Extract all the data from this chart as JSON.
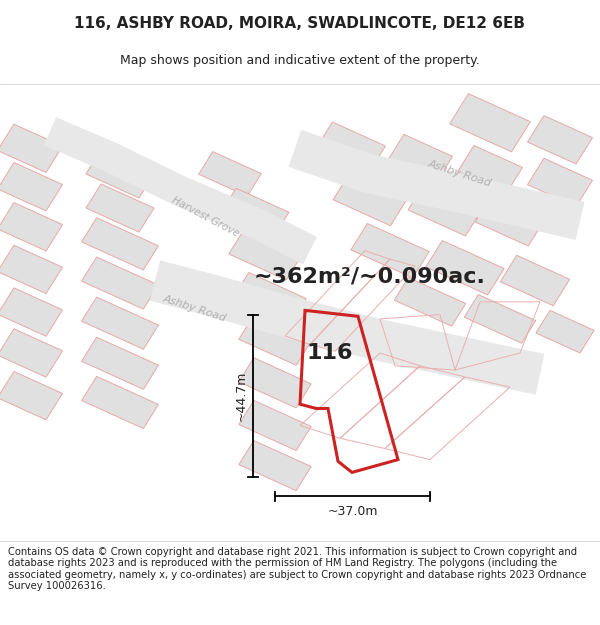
{
  "title_line1": "116, ASHBY ROAD, MOIRA, SWADLINCOTE, DE12 6EB",
  "title_line2": "Map shows position and indicative extent of the property.",
  "area_text": "~362m²/~0.090ac.",
  "label_116": "116",
  "dim_height": "~44.7m",
  "dim_width": "~37.0m",
  "footer_text": "Contains OS data © Crown copyright and database right 2021. This information is subject to Crown copyright and database rights 2023 and is reproduced with the permission of HM Land Registry. The polygons (including the associated geometry, namely x, y co-ordinates) are subject to Crown copyright and database rights 2023 Ordnance Survey 100026316.",
  "map_bg": "#ffffff",
  "road_fill": "#e8e8e8",
  "road_edge": "#cccccc",
  "block_fill": "#e0e0e0",
  "block_edge": "#e0a0a0",
  "prop_edge": "#cc2222",
  "prop_fill": "none",
  "text_color": "#222222",
  "road_label_color": "#aaaaaa",
  "title_font_size": 11,
  "subtitle_font_size": 9,
  "footer_font_size": 7.2,
  "area_font_size": 16,
  "label_font_size": 16,
  "dim_font_size": 9
}
